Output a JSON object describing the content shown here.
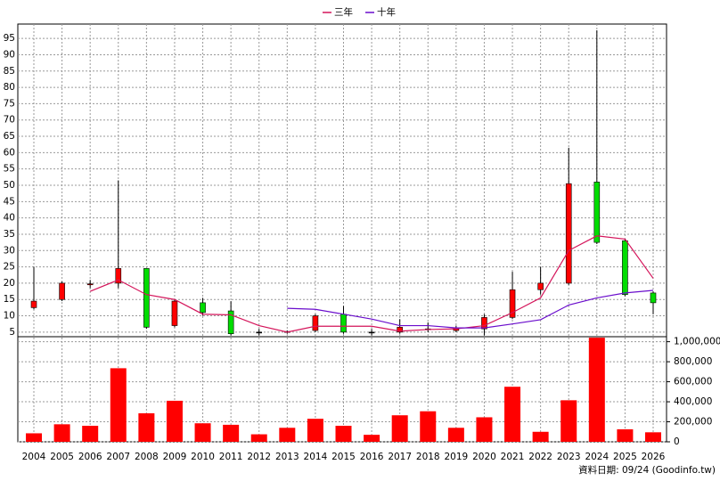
{
  "chart_data": {
    "type": "candlestick",
    "categories": [
      "2004",
      "2005",
      "2006",
      "2007",
      "2008",
      "2009",
      "2010",
      "2011",
      "2012",
      "2013",
      "2014",
      "2015",
      "2016",
      "2017",
      "2018",
      "2019",
      "2020",
      "2021",
      "2022",
      "2023",
      "2024",
      "2025",
      "2026"
    ],
    "open": [
      12.5,
      15,
      19.5,
      20,
      24.5,
      7,
      14,
      11.5,
      5,
      5,
      5.5,
      10.5,
      5,
      5,
      5.8,
      5.5,
      6,
      9.5,
      18,
      20,
      51,
      33,
      17
    ],
    "high": [
      25,
      20.5,
      21,
      51.5,
      24.5,
      15,
      15.5,
      14.5,
      6,
      5.5,
      10.5,
      13,
      6,
      9,
      8,
      7,
      10.5,
      23.5,
      25,
      61.5,
      97.5,
      33.5,
      17.5
    ],
    "low": [
      12,
      14.5,
      18.5,
      18.5,
      6,
      6.5,
      10,
      4,
      4,
      4.5,
      5,
      4.5,
      4,
      4.5,
      5,
      5,
      4,
      9,
      16.5,
      19.5,
      32,
      16,
      10.5
    ],
    "close": [
      14.5,
      20,
      19.8,
      24.5,
      6.5,
      14.5,
      11,
      4.5,
      5,
      5.2,
      10,
      5,
      5,
      6.5,
      6,
      6.3,
      9.5,
      18,
      20,
      50.5,
      32.5,
      16.5,
      14
    ],
    "up_color": "#ff0000",
    "down_color": "#00dd00",
    "series": [
      {
        "name": "三年",
        "color": "#d4145a",
        "values": [
          null,
          null,
          17.5,
          21,
          16.5,
          15,
          10.5,
          10.3,
          7,
          5,
          6.8,
          6.8,
          6.8,
          5.3,
          5.8,
          6,
          7,
          11,
          15.5,
          30,
          34.5,
          33.5,
          21.5
        ]
      },
      {
        "name": "十年",
        "color": "#6a0dcc",
        "values": [
          null,
          null,
          null,
          null,
          null,
          null,
          null,
          null,
          null,
          12.3,
          12,
          10.5,
          9,
          7,
          7,
          6.3,
          6.3,
          7.5,
          8.8,
          13.3,
          15.5,
          17,
          17.8
        ]
      }
    ],
    "ylim": [
      3.6,
      99.4
    ],
    "yticks": [
      5,
      10,
      15,
      20,
      25,
      30,
      35,
      40,
      45,
      50,
      55,
      60,
      65,
      70,
      75,
      80,
      85,
      90,
      95
    ],
    "volume": {
      "color": "#ff0000",
      "axis": "y2",
      "values": [
        85000,
        175000,
        160000,
        735000,
        285000,
        410000,
        185000,
        170000,
        75000,
        140000,
        230000,
        160000,
        70000,
        265000,
        305000,
        140000,
        245000,
        550000,
        100000,
        415000,
        1040000,
        125000,
        95000
      ]
    },
    "y2lim": [
      0,
      1050000
    ],
    "y2ticks": [
      0,
      {
        "value": 200000,
        "label": "200,000"
      },
      {
        "value": 400000,
        "label": "400,000"
      },
      {
        "value": 600000,
        "label": "600,000"
      },
      {
        "value": 800000,
        "label": "800,000"
      },
      {
        "value": 1000000,
        "label": "1,000,000"
      }
    ],
    "grid": true,
    "legend": "top",
    "footer": "資料日期: 09/24 (Goodinfo.tw)"
  }
}
